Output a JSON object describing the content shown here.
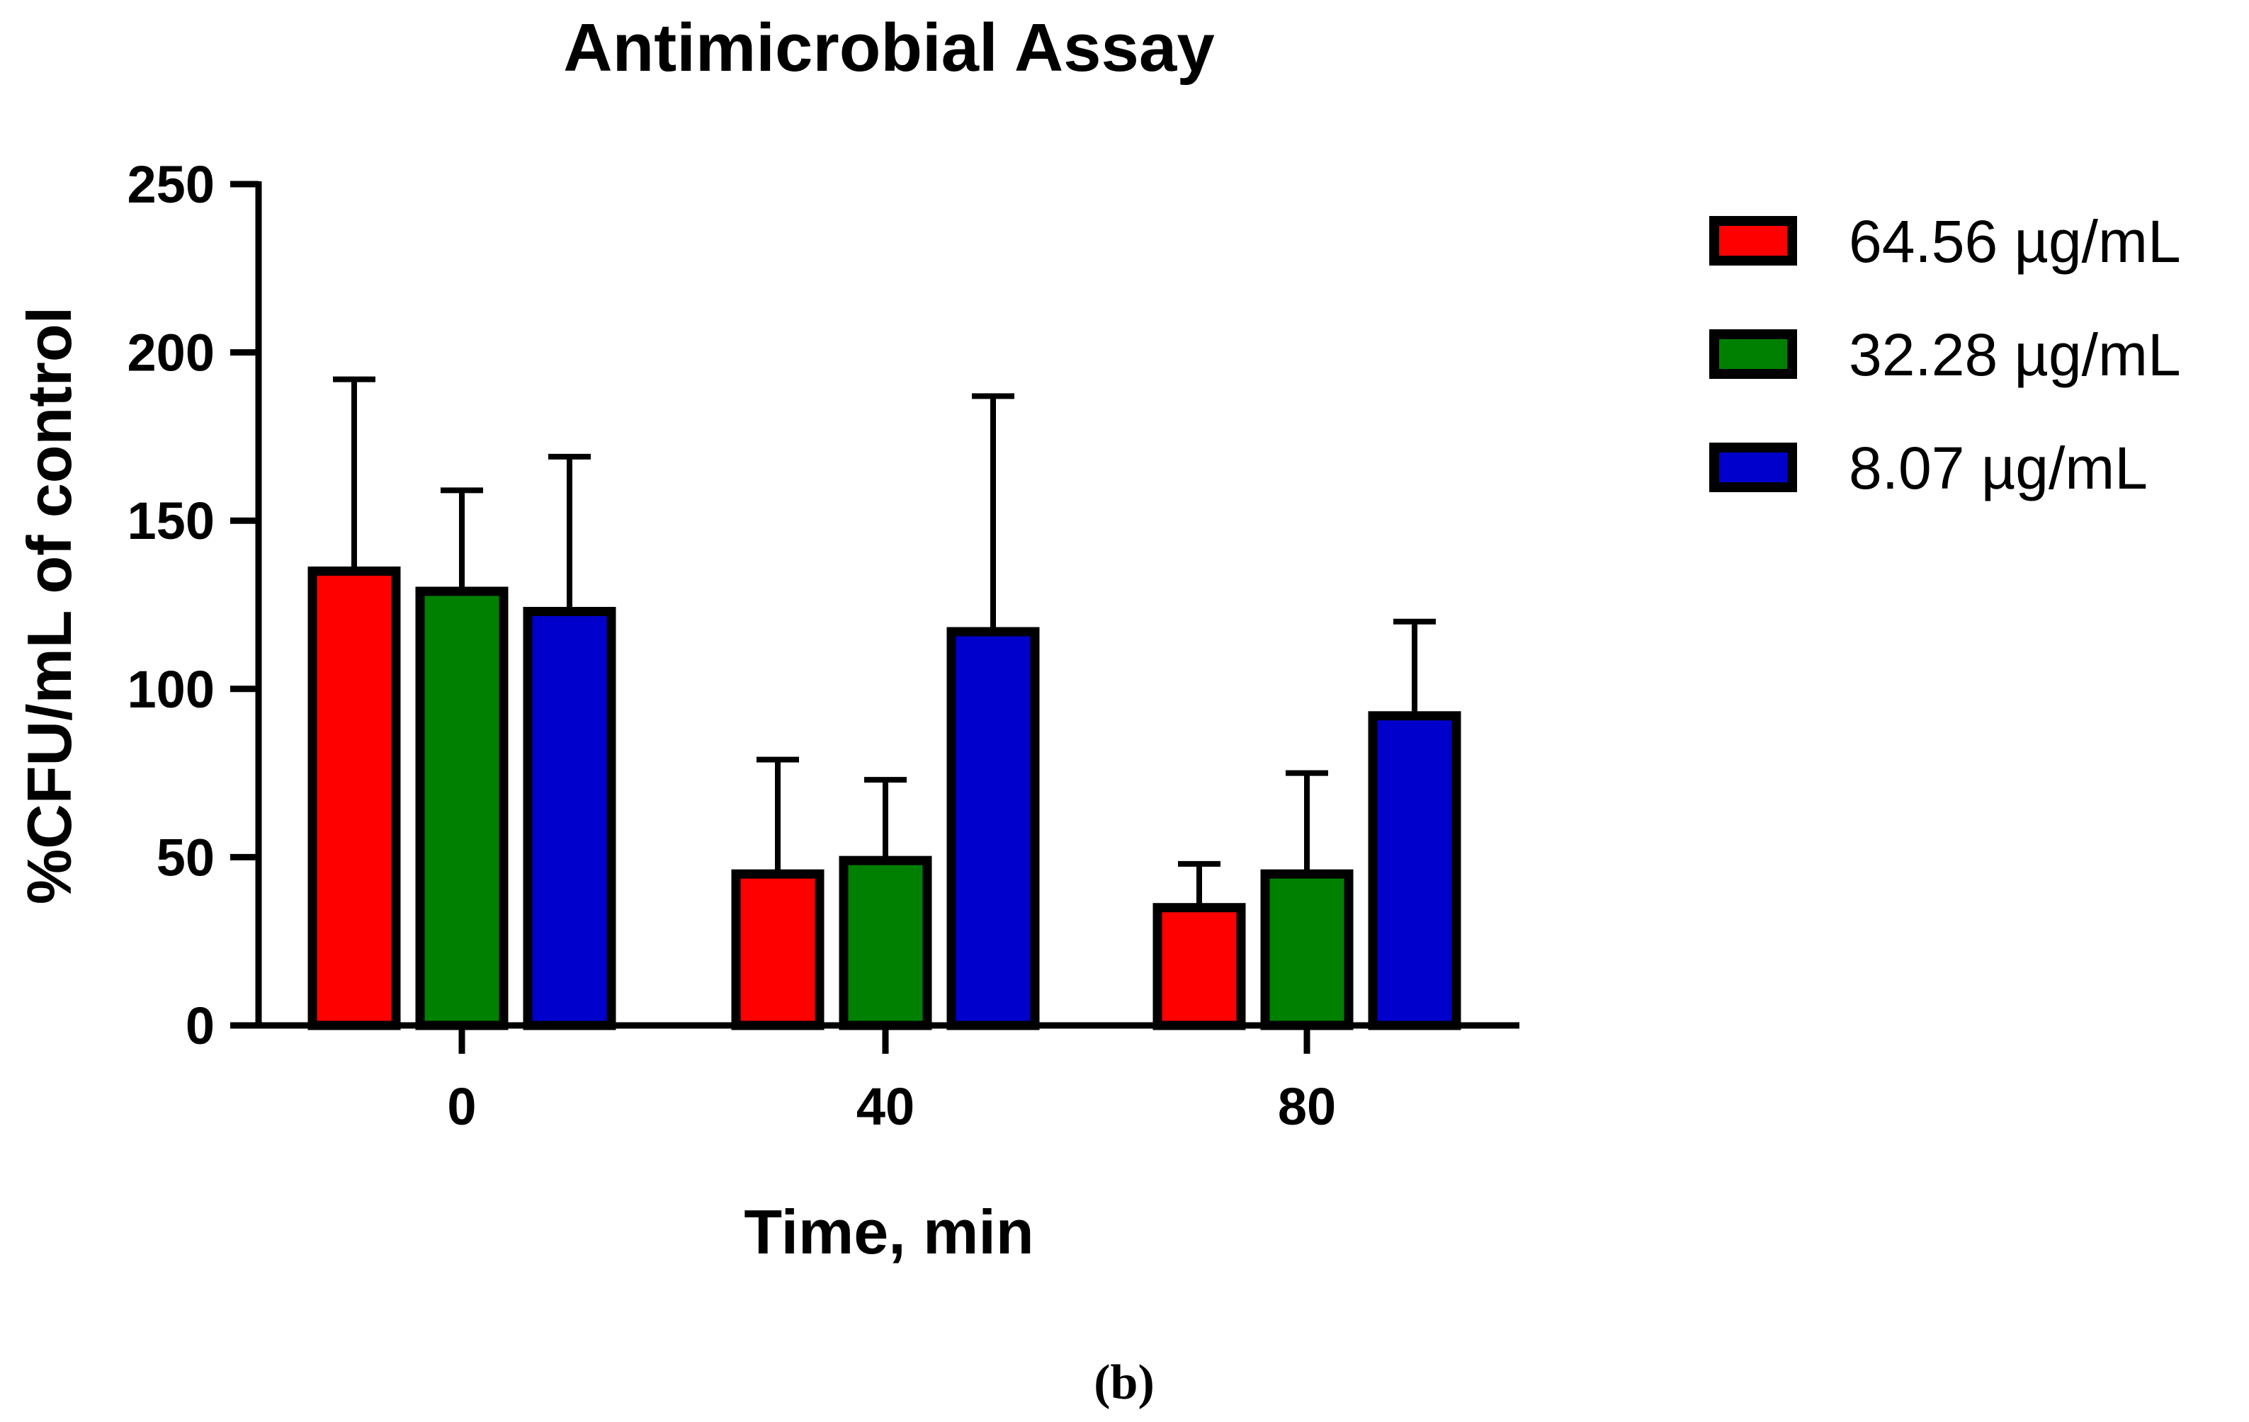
{
  "caption": "(b)",
  "chart_data": {
    "type": "bar",
    "title": "Antimicrobial Assay",
    "xlabel": "Time, min",
    "ylabel": "%CFU/mL of control",
    "categories": [
      "0",
      "40",
      "80"
    ],
    "ylim": [
      0,
      250
    ],
    "yticks": [
      "0",
      "50",
      "100",
      "150",
      "200",
      "250"
    ],
    "grid": false,
    "legend_position": "top-right",
    "series": [
      {
        "name": "64.56 µg/mL",
        "color": "#ff0000",
        "values": [
          135,
          45,
          35
        ],
        "error_upper": [
          192,
          79,
          48
        ]
      },
      {
        "name": "32.28 µg/mL",
        "color": "#008000",
        "values": [
          129,
          49,
          45
        ],
        "error_upper": [
          159,
          73,
          75
        ]
      },
      {
        "name": "8.07 µg/mL",
        "color": "#0000cc",
        "values": [
          123,
          117,
          92
        ],
        "error_upper": [
          169,
          187,
          120
        ]
      }
    ]
  }
}
